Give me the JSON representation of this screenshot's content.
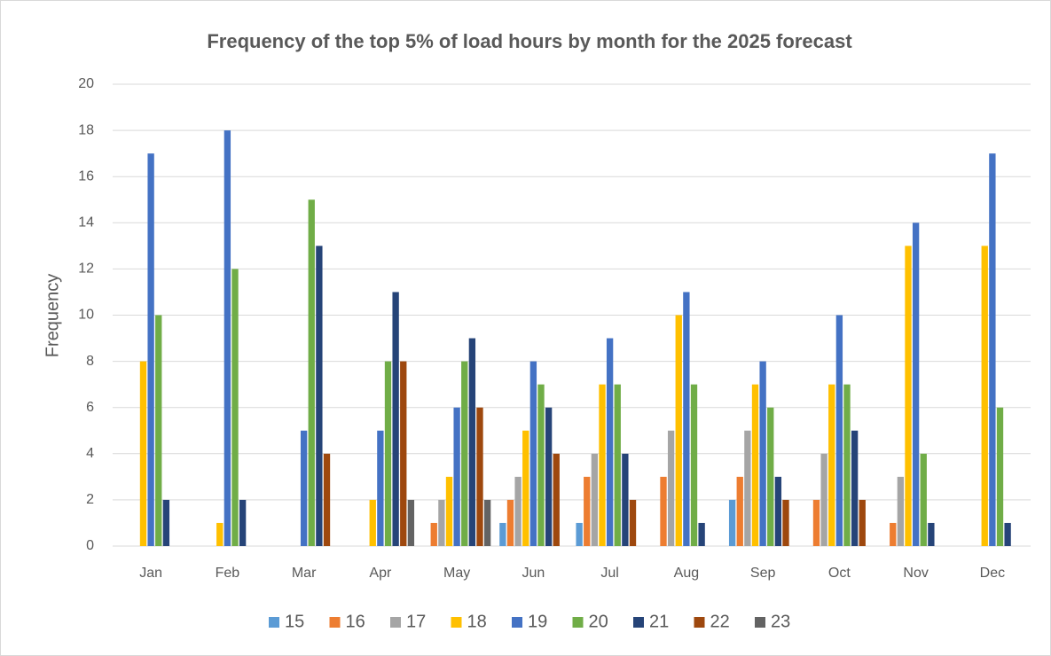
{
  "chart_data": {
    "type": "bar",
    "title": "Frequency of the top 5% of load hours by month for the 2025  forecast",
    "y_label": "Frequency",
    "categories": [
      "Jan",
      "Feb",
      "Mar",
      "Apr",
      "May",
      "Jun",
      "Jul",
      "Aug",
      "Sep",
      "Oct",
      "Nov",
      "Dec"
    ],
    "series": [
      {
        "name": "15",
        "color": "#5b9bd5",
        "values": [
          0,
          0,
          0,
          0,
          0,
          1,
          1,
          0,
          2,
          0,
          0,
          0
        ]
      },
      {
        "name": "16",
        "color": "#ed7d31",
        "values": [
          0,
          0,
          0,
          0,
          1,
          2,
          3,
          3,
          3,
          2,
          1,
          0
        ]
      },
      {
        "name": "17",
        "color": "#a5a5a5",
        "values": [
          0,
          0,
          0,
          0,
          2,
          3,
          4,
          5,
          5,
          4,
          3,
          0
        ]
      },
      {
        "name": "18",
        "color": "#ffc000",
        "values": [
          8,
          1,
          0,
          2,
          3,
          5,
          7,
          10,
          7,
          7,
          13,
          13
        ]
      },
      {
        "name": "19",
        "color": "#4472c4",
        "values": [
          17,
          18,
          5,
          5,
          6,
          8,
          9,
          11,
          8,
          10,
          14,
          17
        ]
      },
      {
        "name": "20",
        "color": "#70ad47",
        "values": [
          10,
          12,
          15,
          8,
          8,
          7,
          7,
          7,
          6,
          7,
          4,
          6
        ]
      },
      {
        "name": "21",
        "color": "#264478",
        "values": [
          2,
          2,
          13,
          11,
          9,
          6,
          4,
          1,
          3,
          5,
          1,
          1
        ]
      },
      {
        "name": "22",
        "color": "#9e480e",
        "values": [
          0,
          0,
          4,
          8,
          6,
          4,
          2,
          0,
          2,
          2,
          0,
          0
        ]
      },
      {
        "name": "23",
        "color": "#636363",
        "values": [
          0,
          0,
          0,
          2,
          2,
          0,
          0,
          0,
          0,
          0,
          0,
          0
        ]
      }
    ],
    "ylim": [
      0,
      20
    ],
    "yticks": [
      0,
      2,
      4,
      6,
      8,
      10,
      12,
      14,
      16,
      18,
      20
    ],
    "grid": true,
    "legend": "bottom"
  }
}
